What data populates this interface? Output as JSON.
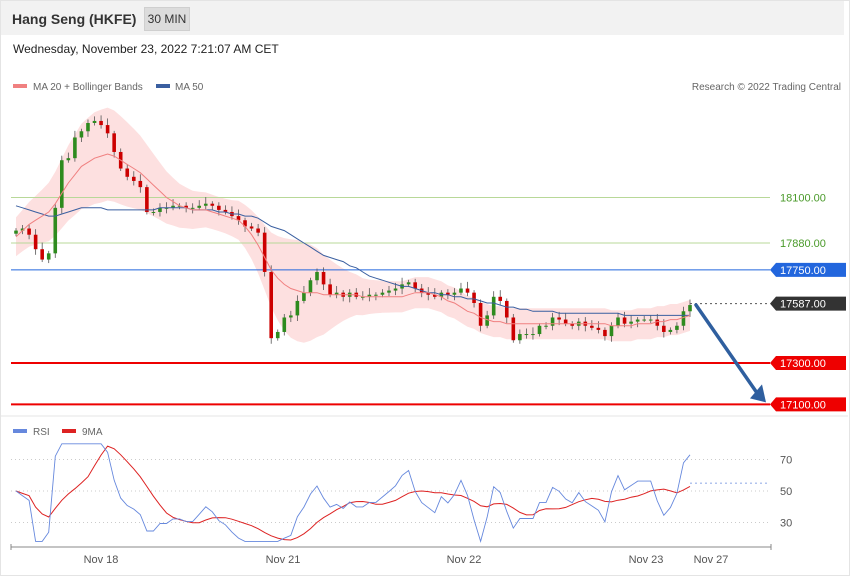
{
  "header": {
    "title": "Hang Seng (HKFE)",
    "interval": "30 MIN",
    "datetime": "Wednesday, November 23, 2022 7:21:07 AM CET"
  },
  "legend": {
    "ma20": "MA 20 + Bollinger Bands",
    "ma50": "MA 50",
    "credit": "Research © 2022 Trading Central",
    "rsi": "RSI",
    "rsi_ma": "9MA"
  },
  "colors": {
    "ma20": "#f08080",
    "ma50": "#3a5fa0",
    "bollinger": "#fde0e0",
    "up": "#2e8b1e",
    "down": "#cc0000",
    "resistance_green": "#4a9a2a",
    "pivot_blue": "#2266dd",
    "support_red": "#ee0000",
    "arrow": "#2f5f9f",
    "rsi": "#6688dd",
    "rsi_ma": "#dd2222"
  },
  "chart_data": {
    "type": "candlestick",
    "instrument": "Hang Seng (HKFE)",
    "timeframe": "30 MIN",
    "y_range": [
      17100,
      18800
    ],
    "x_labels": [
      "Nov 18",
      "Nov 21",
      "Nov 22",
      "Nov 23",
      "Nov 27"
    ],
    "last_price": 17587,
    "levels": [
      {
        "label": "18100.00",
        "value": 18100,
        "kind": "resistance"
      },
      {
        "label": "17880.00",
        "value": 17880,
        "kind": "resistance"
      },
      {
        "label": "17750.00",
        "value": 17750,
        "kind": "pivot"
      },
      {
        "label": "17587.00",
        "value": 17587,
        "kind": "last"
      },
      {
        "label": "17300.00",
        "value": 17300,
        "kind": "support"
      },
      {
        "label": "17100.00",
        "value": 17100,
        "kind": "support"
      }
    ],
    "close": [
      17940,
      17950,
      17920,
      17850,
      17800,
      17830,
      18050,
      18280,
      18290,
      18390,
      18420,
      18460,
      18470,
      18450,
      18410,
      18320,
      18240,
      18200,
      18180,
      18150,
      18030,
      18030,
      18050,
      18050,
      18060,
      18060,
      18050,
      18050,
      18060,
      18070,
      18060,
      18040,
      18030,
      18010,
      17990,
      17960,
      17950,
      17930,
      17740,
      17420,
      17450,
      17520,
      17530,
      17600,
      17640,
      17700,
      17740,
      17680,
      17630,
      17640,
      17620,
      17640,
      17620,
      17620,
      17630,
      17630,
      17640,
      17650,
      17660,
      17680,
      17690,
      17660,
      17640,
      17630,
      17620,
      17640,
      17630,
      17640,
      17660,
      17640,
      17590,
      17480,
      17530,
      17620,
      17600,
      17520,
      17410,
      17440,
      17440,
      17440,
      17480,
      17480,
      17520,
      17510,
      17490,
      17480,
      17500,
      17480,
      17470,
      17460,
      17430,
      17480,
      17520,
      17490,
      17500,
      17510,
      17510,
      17510,
      17480,
      17450,
      17460,
      17480,
      17550,
      17580
    ],
    "ma20": [
      17910,
      17940,
      17970,
      17990,
      18010,
      18030,
      18070,
      18120,
      18170,
      18210,
      18250,
      18270,
      18290,
      18300,
      18310,
      18300,
      18280,
      18260,
      18240,
      18220,
      18190,
      18160,
      18130,
      18100,
      18080,
      18060,
      18050,
      18040,
      18040,
      18040,
      18030,
      18020,
      18010,
      18000,
      17990,
      17960,
      17920,
      17870,
      17810,
      17750,
      17710,
      17680,
      17660,
      17650,
      17640,
      17640,
      17640,
      17630,
      17630,
      17630,
      17630,
      17630,
      17630,
      17620,
      17620,
      17620,
      17620,
      17620,
      17620,
      17620,
      17630,
      17640,
      17640,
      17640,
      17630,
      17620,
      17600,
      17590,
      17570,
      17550,
      17540,
      17520,
      17510,
      17500,
      17500,
      17490,
      17490,
      17490,
      17490,
      17490,
      17490,
      17490,
      17490,
      17490,
      17490,
      17490,
      17490,
      17490,
      17490,
      17490,
      17490,
      17480,
      17480,
      17480,
      17480,
      17490,
      17490,
      17490,
      17500,
      17500,
      17510,
      17510,
      17520,
      17530
    ],
    "ma50": [
      18060,
      18050,
      18040,
      18030,
      18020,
      18010,
      18010,
      18020,
      18030,
      18040,
      18050,
      18050,
      18050,
      18050,
      18040,
      18040,
      18040,
      18040,
      18040,
      18040,
      18040,
      18040,
      18050,
      18050,
      18050,
      18050,
      18050,
      18040,
      18040,
      18040,
      18040,
      18030,
      18030,
      18020,
      18020,
      18010,
      18010,
      18000,
      17980,
      17960,
      17950,
      17940,
      17920,
      17900,
      17880,
      17860,
      17840,
      17820,
      17810,
      17800,
      17790,
      17770,
      17760,
      17740,
      17720,
      17710,
      17700,
      17690,
      17680,
      17670,
      17670,
      17660,
      17650,
      17640,
      17640,
      17630,
      17630,
      17620,
      17620,
      17610,
      17610,
      17600,
      17590,
      17590,
      17580,
      17570,
      17570,
      17560,
      17560,
      17550,
      17550,
      17550,
      17550,
      17540,
      17540,
      17540,
      17540,
      17540,
      17540,
      17540,
      17540,
      17540,
      17540,
      17530,
      17530,
      17530,
      17530,
      17530,
      17530,
      17530,
      17530,
      17530,
      17530,
      17530
    ],
    "rsi_levels": [
      70,
      50,
      30
    ],
    "rsi_last": 55
  }
}
